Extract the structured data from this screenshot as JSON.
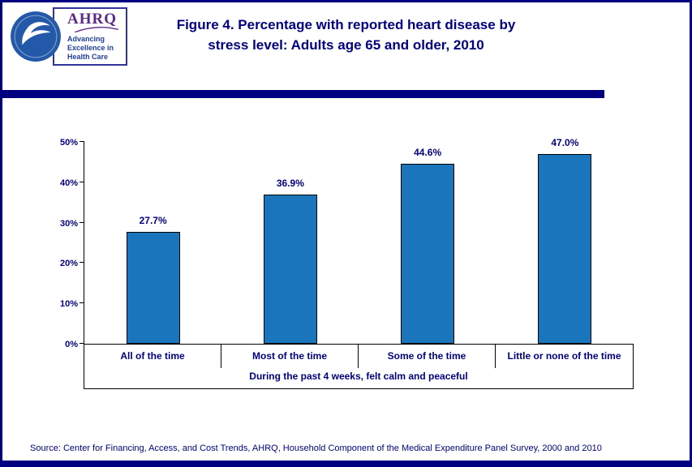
{
  "header": {
    "title_line1": "Figure 4. Percentage with reported heart disease by",
    "title_line2": "stress level: Adults age 65 and older, 2010",
    "logo": {
      "ahrq_text": "AHRQ",
      "tagline_line1": "Advancing",
      "tagline_line2": "Excellence in",
      "tagline_line3": "Health Care"
    }
  },
  "chart_data": {
    "type": "bar",
    "title": "Figure 4. Percentage with reported heart disease by stress level: Adults age 65 and older, 2010",
    "categories": [
      "All of the time",
      "Most of the time",
      "Some of the time",
      "Little or none of the time"
    ],
    "values": [
      27.7,
      36.9,
      44.6,
      47.0
    ],
    "value_labels": [
      "27.7%",
      "36.9%",
      "44.6%",
      "47.0%"
    ],
    "xlabel": "During the past 4 weeks, felt calm and peaceful",
    "ylabel": "",
    "ylim": [
      0,
      50
    ],
    "yticks": [
      "0%",
      "10%",
      "20%",
      "30%",
      "40%",
      "50%"
    ],
    "grid": false,
    "legend": "none",
    "bar_color": "#1B75BC",
    "bar_border": "#000000"
  },
  "footer": {
    "source": "Source: Center for Financing, Access, and Cost Trends, AHRQ, Household Component of the Medical Expenditure Panel Survey, 2000 and 2010"
  }
}
